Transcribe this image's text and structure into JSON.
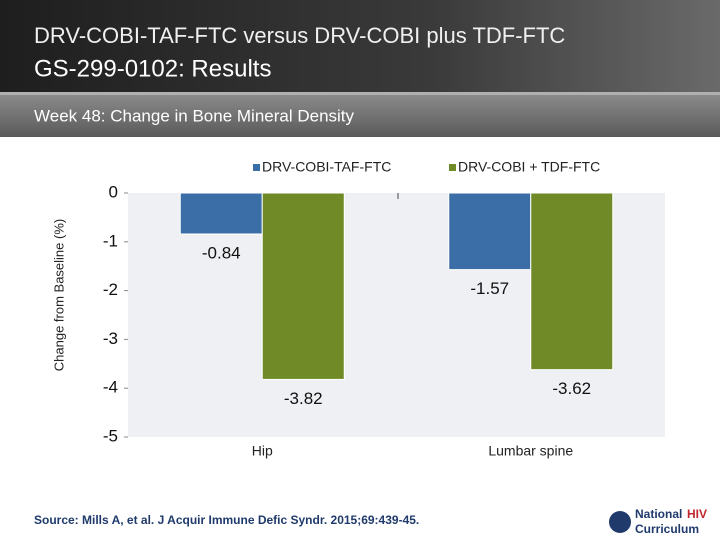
{
  "slide": {
    "title": "DRV-COBI-TAF-FTC versus DRV-COBI plus TDF-FTC",
    "subtitle": "GS-299-0102: Results",
    "section": "Week 48: Change in Bone Mineral Density",
    "source": "Source: Mills A, et al. J Acquir Immune Defic Syndr. 2015;69:439-45.",
    "logo": [
      "National",
      "HIV",
      "Curriculum"
    ]
  },
  "chart_data": {
    "type": "bar",
    "ylabel": "Change from Baseline (%)",
    "categories": [
      "Hip",
      "Lumbar spine"
    ],
    "series": [
      {
        "name": "DRV-COBI-TAF-FTC",
        "color": "#3b6ea6",
        "values": [
          -0.84,
          -1.57
        ]
      },
      {
        "name": "DRV-COBI + TDF-FTC",
        "color": "#6f8a26",
        "values": [
          -3.82,
          -3.62
        ]
      }
    ],
    "ylim": [
      -5,
      0
    ],
    "yticks": [
      0,
      -1,
      -2,
      -3,
      -4,
      -5
    ],
    "legend": "top"
  }
}
